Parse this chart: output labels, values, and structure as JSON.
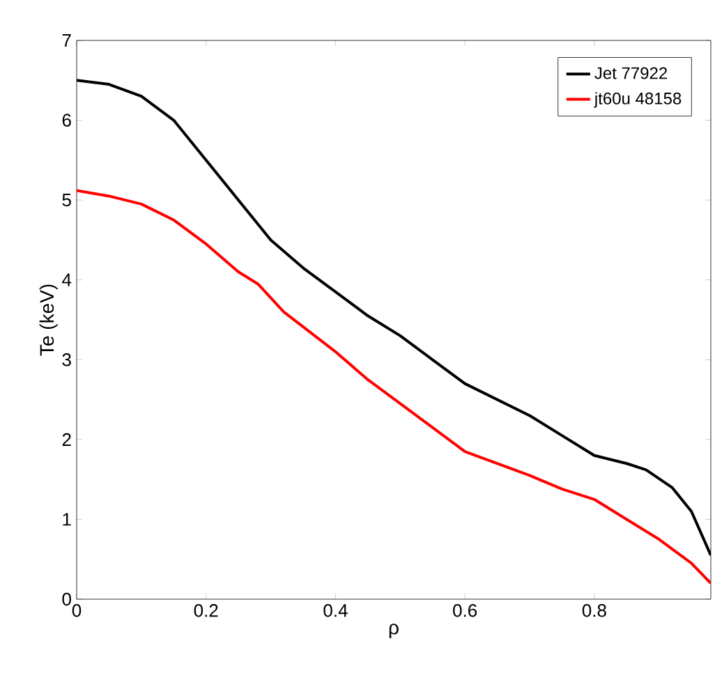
{
  "chart_data": {
    "type": "line",
    "xlabel": "ρ",
    "ylabel": "Te (keV)",
    "xlim": [
      0,
      0.98
    ],
    "ylim": [
      0,
      7
    ],
    "xticks": [
      0,
      0.2,
      0.4,
      0.6,
      0.8
    ],
    "yticks": [
      0,
      1,
      2,
      3,
      4,
      5,
      6,
      7
    ],
    "legend": "top right",
    "grid": false,
    "series": [
      {
        "name": "Jet 77922",
        "color": "#000000",
        "x": [
          0,
          0.05,
          0.1,
          0.15,
          0.2,
          0.25,
          0.3,
          0.35,
          0.4,
          0.45,
          0.5,
          0.55,
          0.6,
          0.65,
          0.7,
          0.75,
          0.8,
          0.85,
          0.88,
          0.92,
          0.95,
          0.98
        ],
        "values": [
          6.5,
          6.45,
          6.3,
          6.0,
          5.5,
          5.0,
          4.5,
          4.15,
          3.85,
          3.55,
          3.3,
          3.0,
          2.7,
          2.5,
          2.3,
          2.05,
          1.8,
          1.7,
          1.62,
          1.4,
          1.1,
          0.55
        ]
      },
      {
        "name": "jt60u 48158",
        "color": "#ff0000",
        "x": [
          0,
          0.05,
          0.1,
          0.15,
          0.2,
          0.25,
          0.28,
          0.32,
          0.4,
          0.45,
          0.5,
          0.55,
          0.6,
          0.65,
          0.7,
          0.75,
          0.8,
          0.85,
          0.9,
          0.95,
          0.98
        ],
        "values": [
          5.12,
          5.05,
          4.95,
          4.75,
          4.45,
          4.1,
          3.95,
          3.6,
          3.1,
          2.75,
          2.45,
          2.15,
          1.85,
          1.7,
          1.55,
          1.38,
          1.25,
          1.0,
          0.75,
          0.45,
          0.2
        ]
      }
    ]
  }
}
